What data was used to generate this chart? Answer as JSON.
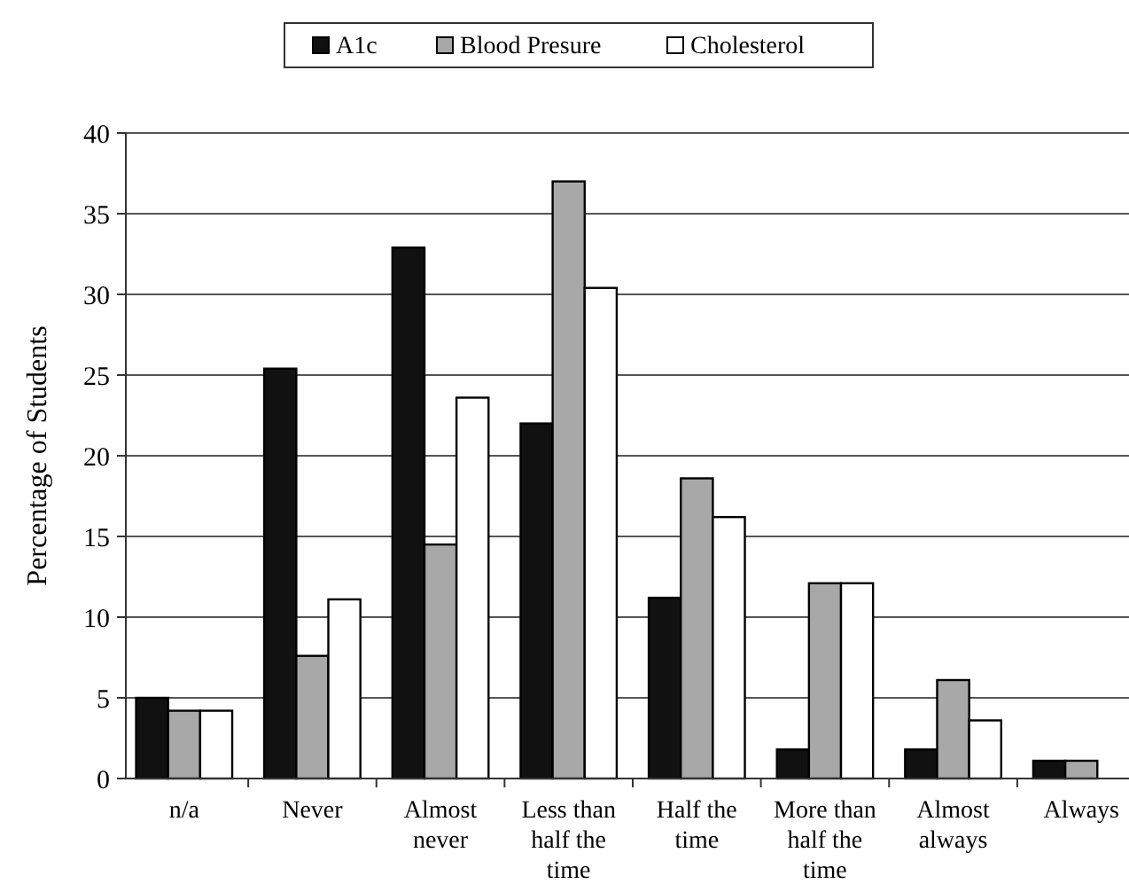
{
  "chart_data": {
    "type": "bar",
    "ylabel": "Percentage of Students",
    "categories": [
      "n/a",
      "Never",
      "Almost never",
      "Less than half the time",
      "Half the time",
      "More than half the time",
      "Almost always",
      "Always"
    ],
    "series": [
      {
        "name": "A1c",
        "color": "#111111",
        "values": [
          5,
          25.4,
          32.9,
          22,
          11.2,
          1.8,
          1.8,
          1.1
        ]
      },
      {
        "name": "Blood Presure",
        "color": "#a8a8a8",
        "values": [
          4.2,
          7.6,
          14.5,
          37,
          18.6,
          12.1,
          6.1,
          1.1
        ]
      },
      {
        "name": "Cholesterol",
        "color": "#ffffff",
        "values": [
          4.2,
          11.1,
          23.6,
          30.4,
          16.2,
          12.1,
          3.6,
          0
        ]
      }
    ],
    "ylim": [
      0,
      40
    ],
    "yticks": [
      0,
      5,
      10,
      15,
      20,
      25,
      30,
      35,
      40
    ],
    "grid": "y",
    "legend": "top"
  }
}
